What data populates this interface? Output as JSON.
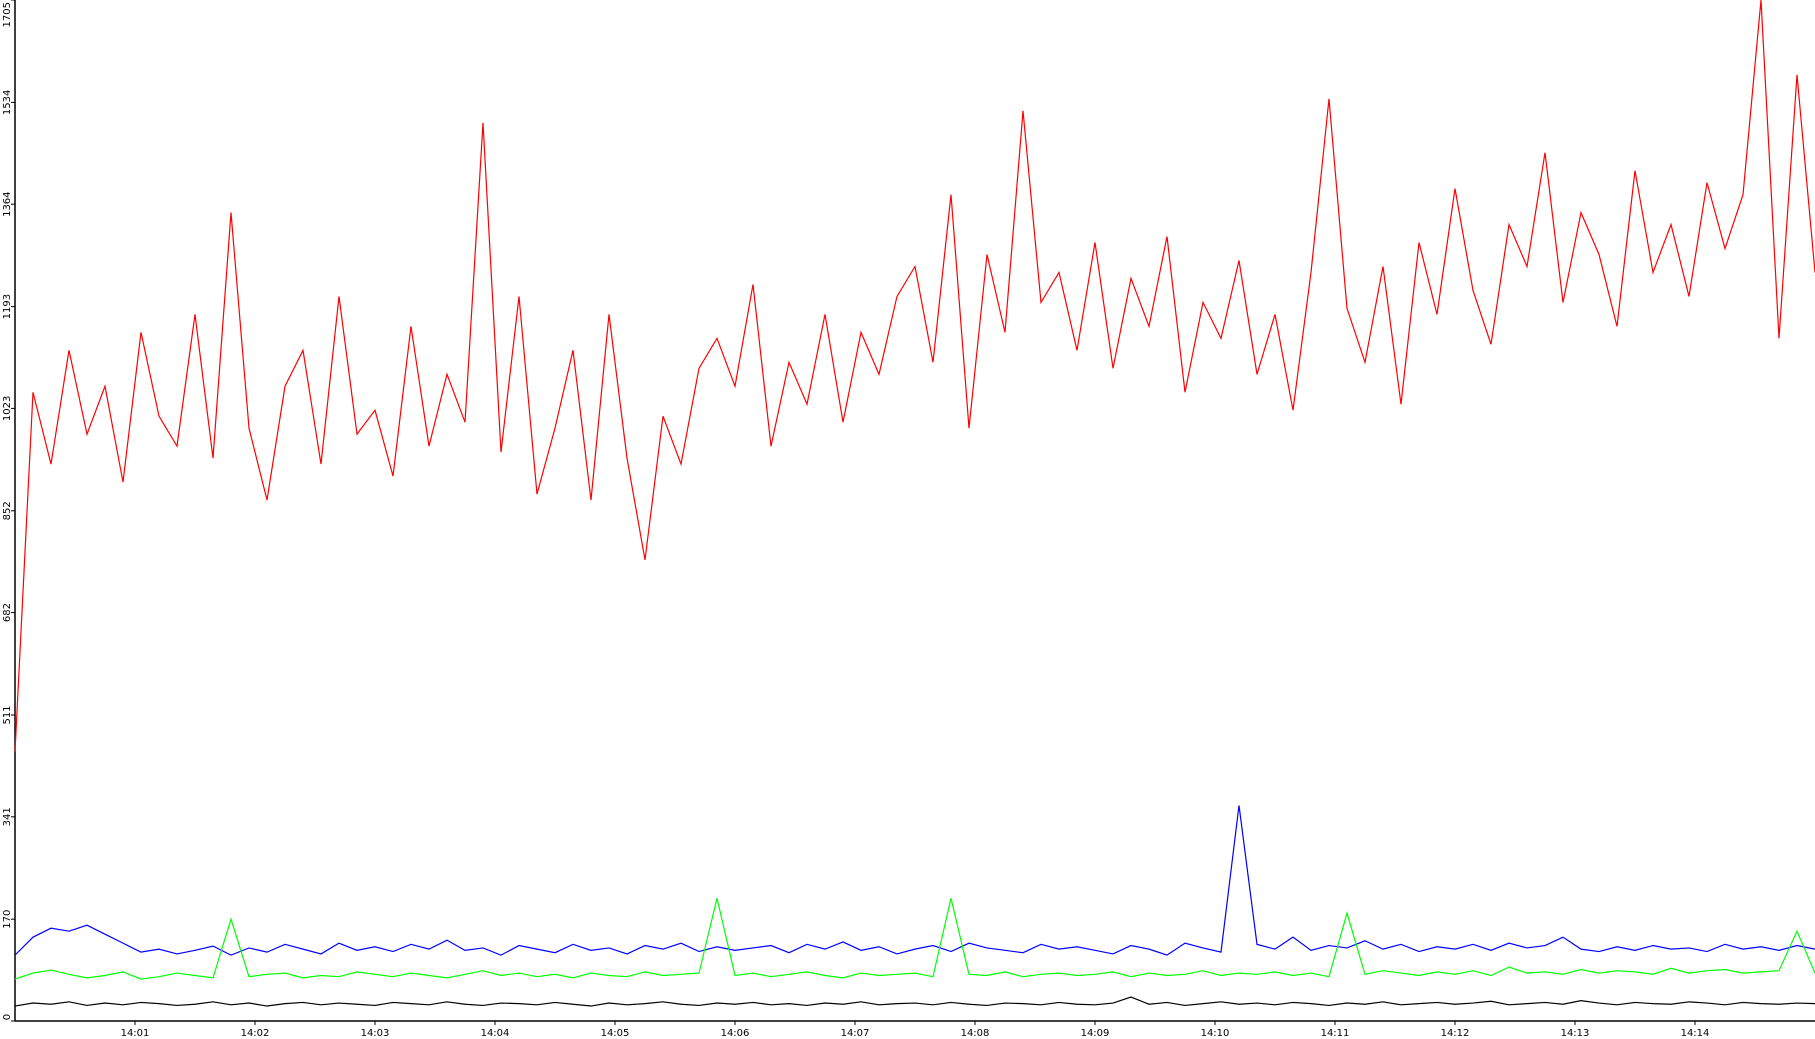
{
  "chart_data": {
    "type": "line",
    "x": [
      0,
      0.15,
      0.3,
      0.45,
      0.6,
      0.75,
      0.9,
      1.05,
      1.2,
      1.35,
      1.5,
      1.65,
      1.8,
      1.95,
      2.1,
      2.25,
      2.4,
      2.55,
      2.7,
      2.85,
      3,
      3.15,
      3.3,
      3.45,
      3.6,
      3.75,
      3.9,
      4.05,
      4.2,
      4.35,
      4.5,
      4.65,
      4.8,
      4.95,
      5.1,
      5.25,
      5.4,
      5.55,
      5.7,
      5.85,
      6,
      6.15,
      6.3,
      6.45,
      6.6,
      6.75,
      6.9,
      7.05,
      7.2,
      7.35,
      7.5,
      7.65,
      7.8,
      7.95,
      8.1,
      8.25,
      8.4,
      8.55,
      8.7,
      8.85,
      9,
      9.15,
      9.3,
      9.45,
      9.6,
      9.75,
      9.9,
      10.05,
      10.2,
      10.35,
      10.5,
      10.65,
      10.8,
      10.95,
      11.1,
      11.25,
      11.4,
      11.55,
      11.7,
      11.85,
      12,
      12.15,
      12.3,
      12.45,
      12.6,
      12.75,
      12.9,
      13.05,
      13.2,
      13.35,
      13.5,
      13.65,
      13.8,
      13.95,
      14.1,
      14.25,
      14.4,
      14.55,
      14.7,
      14.85,
      15
    ],
    "series": [
      {
        "color": "#ff0000",
        "values": [
          450,
          1050,
          930,
          1120,
          980,
          1060,
          900,
          1150,
          1010,
          960,
          1180,
          940,
          1350,
          990,
          870,
          1060,
          1120,
          930,
          1210,
          980,
          1020,
          910,
          1160,
          960,
          1080,
          1000,
          1500,
          950,
          1210,
          880,
          990,
          1120,
          870,
          1180,
          940,
          770,
          1010,
          930,
          1090,
          1140,
          1060,
          1230,
          960,
          1100,
          1030,
          1180,
          1000,
          1150,
          1080,
          1210,
          1260,
          1100,
          1380,
          990,
          1280,
          1150,
          1520,
          1200,
          1250,
          1120,
          1300,
          1090,
          1240,
          1160,
          1310,
          1050,
          1200,
          1140,
          1270,
          1080,
          1180,
          1020,
          1250,
          1540,
          1190,
          1100,
          1260,
          1030,
          1300,
          1180,
          1390,
          1220,
          1130,
          1330,
          1260,
          1450,
          1200,
          1350,
          1280,
          1160,
          1420,
          1250,
          1330,
          1210,
          1400,
          1290,
          1380,
          1705,
          1140,
          1580,
          1250
        ]
      },
      {
        "color": "#0000ff",
        "values": [
          110,
          140,
          155,
          150,
          160,
          145,
          130,
          115,
          120,
          112,
          118,
          125,
          110,
          122,
          115,
          128,
          120,
          112,
          130,
          118,
          124,
          116,
          128,
          120,
          135,
          118,
          122,
          110,
          126,
          120,
          114,
          128,
          118,
          122,
          112,
          126,
          120,
          130,
          116,
          124,
          118,
          122,
          126,
          114,
          128,
          120,
          132,
          118,
          124,
          112,
          120,
          126,
          116,
          130,
          122,
          118,
          114,
          128,
          120,
          124,
          118,
          112,
          126,
          120,
          110,
          130,
          122,
          115,
          360,
          128,
          120,
          140,
          118,
          126,
          122,
          134,
          120,
          128,
          116,
          124,
          120,
          128,
          118,
          130,
          122,
          126,
          140,
          120,
          116,
          124,
          118,
          126,
          120,
          122,
          116,
          128,
          120,
          124,
          118,
          126,
          120
        ]
      },
      {
        "color": "#00ff00",
        "values": [
          70,
          80,
          85,
          78,
          72,
          76,
          82,
          70,
          74,
          80,
          76,
          72,
          170,
          74,
          78,
          80,
          72,
          76,
          74,
          82,
          78,
          74,
          80,
          76,
          72,
          78,
          84,
          76,
          80,
          74,
          78,
          72,
          80,
          76,
          74,
          82,
          76,
          78,
          80,
          205,
          76,
          80,
          74,
          78,
          82,
          76,
          72,
          80,
          76,
          78,
          80,
          74,
          205,
          78,
          76,
          82,
          74,
          78,
          80,
          76,
          78,
          82,
          74,
          80,
          76,
          78,
          84,
          76,
          80,
          78,
          82,
          76,
          80,
          74,
          180,
          78,
          84,
          80,
          76,
          82,
          78,
          84,
          76,
          90,
          80,
          82,
          78,
          86,
          80,
          84,
          82,
          78,
          88,
          80,
          84,
          86,
          80,
          82,
          84,
          150,
          80
        ]
      },
      {
        "color": "#000000",
        "values": [
          25,
          30,
          28,
          32,
          26,
          30,
          27,
          31,
          29,
          26,
          28,
          32,
          27,
          30,
          25,
          29,
          31,
          27,
          30,
          28,
          26,
          31,
          29,
          27,
          32,
          28,
          26,
          30,
          29,
          27,
          31,
          28,
          25,
          30,
          27,
          29,
          32,
          28,
          26,
          30,
          28,
          31,
          27,
          29,
          26,
          30,
          28,
          32,
          27,
          29,
          30,
          27,
          31,
          28,
          26,
          30,
          29,
          27,
          31,
          28,
          27,
          30,
          40,
          28,
          31,
          26,
          29,
          32,
          28,
          30,
          27,
          31,
          29,
          26,
          30,
          28,
          32,
          27,
          29,
          31,
          28,
          30,
          33,
          27,
          29,
          31,
          28,
          34,
          30,
          27,
          31,
          29,
          28,
          32,
          30,
          27,
          31,
          29,
          28,
          30,
          29
        ]
      }
    ],
    "xlim": [
      0,
      15
    ],
    "xticks": [
      {
        "value": 1,
        "label": "14:01"
      },
      {
        "value": 2,
        "label": "14:02"
      },
      {
        "value": 3,
        "label": "14:03"
      },
      {
        "value": 4,
        "label": "14:04"
      },
      {
        "value": 5,
        "label": "14:05"
      },
      {
        "value": 6,
        "label": "14:06"
      },
      {
        "value": 7,
        "label": "14:07"
      },
      {
        "value": 8,
        "label": "14:08"
      },
      {
        "value": 9,
        "label": "14:09"
      },
      {
        "value": 10,
        "label": "14:10"
      },
      {
        "value": 11,
        "label": "14:11"
      },
      {
        "value": 12,
        "label": "14:12"
      },
      {
        "value": 13,
        "label": "14:13"
      },
      {
        "value": 14,
        "label": "14:14"
      }
    ],
    "ylim": [
      0,
      1705
    ],
    "yticks": [
      0,
      170,
      341,
      511,
      682,
      852,
      1023,
      1193,
      1364,
      1534,
      1705
    ]
  }
}
